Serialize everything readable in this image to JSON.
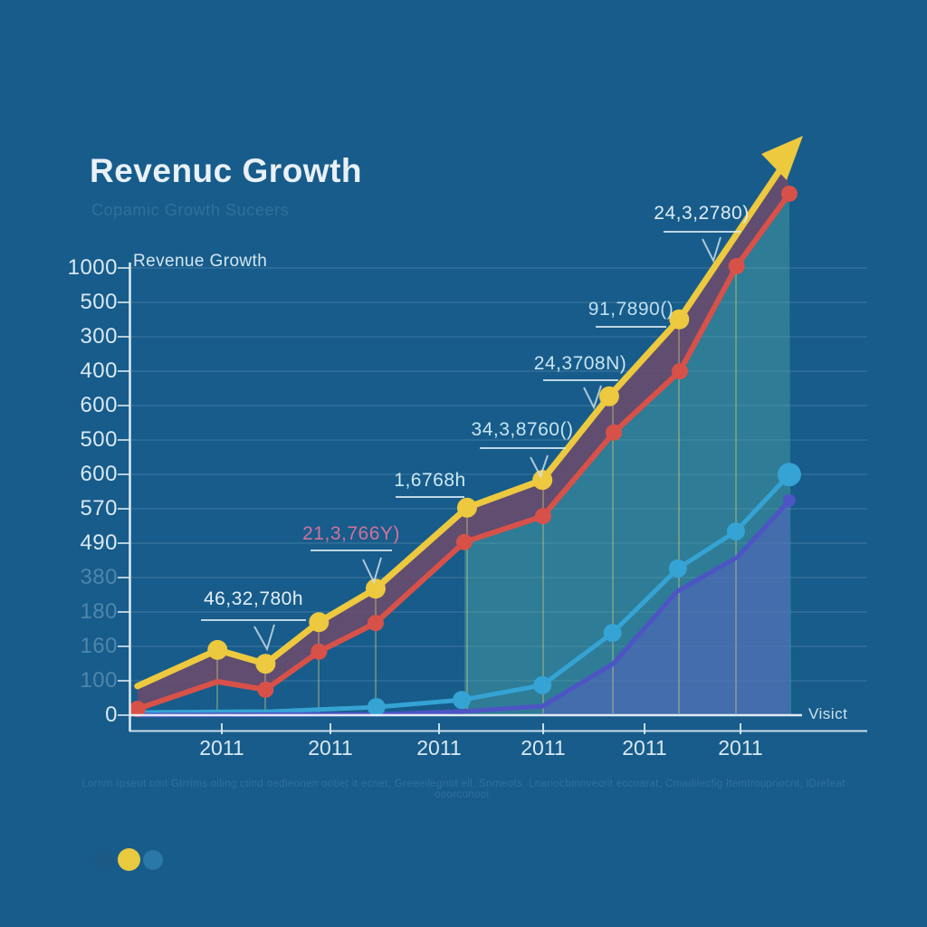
{
  "page": {
    "title": "Revenuc Growth",
    "subtitle": "Copamic Growth Suceers",
    "caption": "Lornm Ipseut omt Gtrrims oiling ctind oedieonen ootiet it ecnet, Greeeilegnot ell, Snmeots. Lnariocbmnvecrit eccoarat, Cmadilecfig ltemtroupriocnt, lDrefeat ooorconooi.",
    "background_color": "#175c8b"
  },
  "chart_data": {
    "type": "line",
    "title": "Revenue Growth",
    "axis_right_label": "Visict",
    "grid": true,
    "value_scale": [
      0,
      1000
    ],
    "y_axis_labels_top_down": [
      "1000",
      "500",
      "300",
      "400",
      "600",
      "500",
      "600",
      "570",
      "490",
      "380",
      "180",
      "160",
      "100",
      "0"
    ],
    "x_axis_labels": [
      "2011",
      "2011",
      "2011",
      "2011",
      "2011",
      "2011"
    ],
    "series": [
      {
        "name": "yellow-growth-line",
        "color": "#ecc93f",
        "width": 7,
        "marker_r": 11,
        "points": [
          [
            0.012,
            65
          ],
          [
            0.132,
            146
          ],
          [
            0.204,
            115
          ],
          [
            0.284,
            208
          ],
          [
            0.369,
            283
          ],
          [
            0.506,
            464
          ],
          [
            0.619,
            526
          ],
          [
            0.719,
            713
          ],
          [
            0.824,
            885
          ],
          [
            0.984,
            1239
          ]
        ],
        "markers": [
          1,
          2,
          3,
          4,
          5,
          6,
          7,
          8
        ],
        "ends_with_arrow": true
      },
      {
        "name": "red-revenue-line",
        "color": "#d85149",
        "width": 6,
        "marker_r": 9,
        "points": [
          [
            0.012,
            14
          ],
          [
            0.132,
            75
          ],
          [
            0.204,
            57
          ],
          [
            0.284,
            142
          ],
          [
            0.369,
            206
          ],
          [
            0.502,
            387
          ],
          [
            0.62,
            445
          ],
          [
            0.726,
            632
          ],
          [
            0.825,
            769
          ],
          [
            0.91,
            1004
          ],
          [
            0.989,
            1166
          ]
        ],
        "markers": [
          0,
          2,
          3,
          4,
          5,
          6,
          7,
          8,
          9,
          10
        ]
      },
      {
        "name": "cyan-visits-line",
        "color": "#35a3d4",
        "width": 5,
        "marker_r": 10,
        "points": [
          [
            0.012,
            6
          ],
          [
            0.213,
            8
          ],
          [
            0.37,
            18
          ],
          [
            0.498,
            34
          ],
          [
            0.619,
            67
          ],
          [
            0.724,
            184
          ],
          [
            0.822,
            328
          ],
          [
            0.909,
            411
          ],
          [
            0.989,
            538
          ]
        ],
        "markers": [
          2,
          3,
          4,
          5,
          6,
          7,
          8
        ]
      },
      {
        "name": "indigo-secondary-line",
        "color": "#4d55c4",
        "width": 5,
        "marker_r": 7,
        "points": [
          [
            0.012,
            0
          ],
          [
            0.376,
            2
          ],
          [
            0.498,
            8
          ],
          [
            0.619,
            20
          ],
          [
            0.725,
            115
          ],
          [
            0.821,
            277
          ],
          [
            0.912,
            354
          ],
          [
            0.989,
            480
          ]
        ],
        "markers": [
          7
        ]
      }
    ],
    "fill_colors": {
      "band_between_yellow_red": "#6e4a6a",
      "teal_area": "#55b0a8",
      "indigo_area": "#5560c0"
    },
    "annotations": [
      {
        "text": "46,32,780h",
        "color": "#e3f0f8"
      },
      {
        "text": "21,3,766Y)",
        "color": "#d2729a"
      },
      {
        "text": "1,6768h",
        "color": "#cde9f4"
      },
      {
        "text": "34,3,8760()",
        "color": "#c8e5f0"
      },
      {
        "text": "24,3708N)",
        "color": "#c8e5f0"
      },
      {
        "text": "91,7890()",
        "color": "#bfe0ee"
      },
      {
        "text": "24,3,2780)",
        "color": "#dfecf5"
      }
    ],
    "pagination_dots": [
      {
        "name": "dot-1",
        "color": "#1f5680"
      },
      {
        "name": "dot-2",
        "color": "#e9ca3e"
      },
      {
        "name": "dot-3",
        "color": "#2d7dab"
      }
    ]
  }
}
